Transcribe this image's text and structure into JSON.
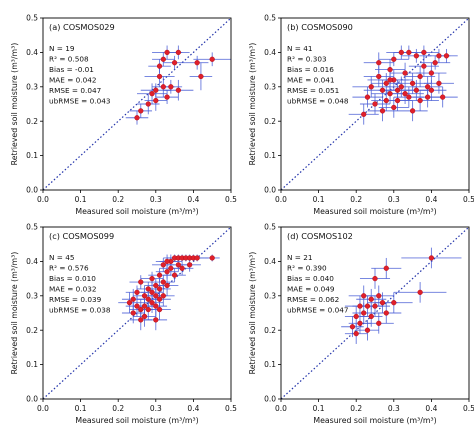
{
  "figure": {
    "ylabel": "Retrieved soil moisture (m³/m³)",
    "xlabel": "Measured soil moisture (m³/m³)"
  },
  "ticks": [
    "0.0",
    "0.1",
    "0.2",
    "0.3",
    "0.4",
    "0.5"
  ],
  "colors": {
    "point": "#e0202a",
    "point_edge": "#b01020",
    "errorbar": "#4b5fd6",
    "diagonal": "#2233aa",
    "axes": "#000000"
  },
  "chart_data": [
    {
      "type": "scatter",
      "title": "(a) COSMOS029",
      "xlabel": "Measured soil moisture (m³/m³)",
      "ylabel": "Retrieved soil moisture (m³/m³)",
      "xlim": [
        0,
        0.5
      ],
      "ylim": [
        0,
        0.5
      ],
      "diagonal": "1:1 dotted",
      "stats": [
        "N = 19",
        "R² = 0.508",
        "Bias = -0.01",
        "MAE = 0.042",
        "RMSE = 0.047",
        "ubRMSE = 0.043"
      ],
      "points": [
        {
          "x": 0.25,
          "y": 0.21,
          "ex": 0.03,
          "ey": 0.02
        },
        {
          "x": 0.26,
          "y": 0.23,
          "ex": 0.03,
          "ey": 0.02
        },
        {
          "x": 0.28,
          "y": 0.25,
          "ex": 0.03,
          "ey": 0.03
        },
        {
          "x": 0.29,
          "y": 0.28,
          "ex": 0.04,
          "ey": 0.03
        },
        {
          "x": 0.3,
          "y": 0.26,
          "ex": 0.03,
          "ey": 0.03
        },
        {
          "x": 0.3,
          "y": 0.29,
          "ex": 0.04,
          "ey": 0.02
        },
        {
          "x": 0.31,
          "y": 0.33,
          "ex": 0.04,
          "ey": 0.03
        },
        {
          "x": 0.31,
          "y": 0.36,
          "ex": 0.03,
          "ey": 0.02
        },
        {
          "x": 0.32,
          "y": 0.38,
          "ex": 0.03,
          "ey": 0.02
        },
        {
          "x": 0.32,
          "y": 0.3,
          "ex": 0.03,
          "ey": 0.03
        },
        {
          "x": 0.33,
          "y": 0.27,
          "ex": 0.03,
          "ey": 0.02
        },
        {
          "x": 0.33,
          "y": 0.4,
          "ex": 0.04,
          "ey": 0.02
        },
        {
          "x": 0.34,
          "y": 0.3,
          "ex": 0.03,
          "ey": 0.02
        },
        {
          "x": 0.36,
          "y": 0.4,
          "ex": 0.03,
          "ey": 0.02
        },
        {
          "x": 0.36,
          "y": 0.29,
          "ex": 0.04,
          "ey": 0.03
        },
        {
          "x": 0.35,
          "y": 0.37,
          "ex": 0.03,
          "ey": 0.02
        },
        {
          "x": 0.41,
          "y": 0.37,
          "ex": 0.03,
          "ey": 0.02
        },
        {
          "x": 0.42,
          "y": 0.33,
          "ex": 0.03,
          "ey": 0.04
        },
        {
          "x": 0.45,
          "y": 0.38,
          "ex": 0.05,
          "ey": 0.02
        }
      ]
    },
    {
      "type": "scatter",
      "title": "(b) COSMOS090",
      "xlabel": "Measured soil moisture (m³/m³)",
      "ylabel": "Retrieved soil moisture (m³/m³)",
      "xlim": [
        0,
        0.5
      ],
      "ylim": [
        0,
        0.5
      ],
      "diagonal": "1:1 dotted",
      "stats": [
        "N = 41",
        "R² = 0.303",
        "Bias = 0.016",
        "MAE = 0.041",
        "RMSE = 0.051",
        "ubRMSE = 0.048"
      ],
      "points": [
        {
          "x": 0.22,
          "y": 0.22,
          "ex": 0.04,
          "ey": 0.03
        },
        {
          "x": 0.23,
          "y": 0.27,
          "ex": 0.04,
          "ey": 0.03
        },
        {
          "x": 0.24,
          "y": 0.3,
          "ex": 0.05,
          "ey": 0.03
        },
        {
          "x": 0.25,
          "y": 0.25,
          "ex": 0.04,
          "ey": 0.03
        },
        {
          "x": 0.26,
          "y": 0.33,
          "ex": 0.04,
          "ey": 0.03
        },
        {
          "x": 0.27,
          "y": 0.29,
          "ex": 0.05,
          "ey": 0.03
        },
        {
          "x": 0.27,
          "y": 0.23,
          "ex": 0.04,
          "ey": 0.03
        },
        {
          "x": 0.28,
          "y": 0.31,
          "ex": 0.04,
          "ey": 0.03
        },
        {
          "x": 0.28,
          "y": 0.26,
          "ex": 0.04,
          "ey": 0.03
        },
        {
          "x": 0.29,
          "y": 0.35,
          "ex": 0.04,
          "ey": 0.03
        },
        {
          "x": 0.29,
          "y": 0.28,
          "ex": 0.05,
          "ey": 0.03
        },
        {
          "x": 0.3,
          "y": 0.32,
          "ex": 0.04,
          "ey": 0.03
        },
        {
          "x": 0.3,
          "y": 0.24,
          "ex": 0.04,
          "ey": 0.03
        },
        {
          "x": 0.3,
          "y": 0.38,
          "ex": 0.04,
          "ey": 0.02
        },
        {
          "x": 0.31,
          "y": 0.29,
          "ex": 0.05,
          "ey": 0.03
        },
        {
          "x": 0.31,
          "y": 0.26,
          "ex": 0.04,
          "ey": 0.03
        },
        {
          "x": 0.32,
          "y": 0.4,
          "ex": 0.04,
          "ey": 0.02
        },
        {
          "x": 0.32,
          "y": 0.3,
          "ex": 0.04,
          "ey": 0.03
        },
        {
          "x": 0.33,
          "y": 0.28,
          "ex": 0.05,
          "ey": 0.03
        },
        {
          "x": 0.33,
          "y": 0.34,
          "ex": 0.04,
          "ey": 0.03
        },
        {
          "x": 0.34,
          "y": 0.4,
          "ex": 0.04,
          "ey": 0.02
        },
        {
          "x": 0.34,
          "y": 0.27,
          "ex": 0.04,
          "ey": 0.03
        },
        {
          "x": 0.35,
          "y": 0.31,
          "ex": 0.05,
          "ey": 0.03
        },
        {
          "x": 0.35,
          "y": 0.23,
          "ex": 0.04,
          "ey": 0.03
        },
        {
          "x": 0.36,
          "y": 0.39,
          "ex": 0.04,
          "ey": 0.02
        },
        {
          "x": 0.36,
          "y": 0.29,
          "ex": 0.04,
          "ey": 0.03
        },
        {
          "x": 0.37,
          "y": 0.33,
          "ex": 0.04,
          "ey": 0.03
        },
        {
          "x": 0.37,
          "y": 0.26,
          "ex": 0.05,
          "ey": 0.03
        },
        {
          "x": 0.38,
          "y": 0.4,
          "ex": 0.04,
          "ey": 0.02
        },
        {
          "x": 0.38,
          "y": 0.36,
          "ex": 0.04,
          "ey": 0.03
        },
        {
          "x": 0.39,
          "y": 0.3,
          "ex": 0.04,
          "ey": 0.03
        },
        {
          "x": 0.39,
          "y": 0.27,
          "ex": 0.04,
          "ey": 0.03
        },
        {
          "x": 0.4,
          "y": 0.34,
          "ex": 0.04,
          "ey": 0.03
        },
        {
          "x": 0.4,
          "y": 0.29,
          "ex": 0.04,
          "ey": 0.03
        },
        {
          "x": 0.41,
          "y": 0.37,
          "ex": 0.04,
          "ey": 0.02
        },
        {
          "x": 0.42,
          "y": 0.39,
          "ex": 0.03,
          "ey": 0.02
        },
        {
          "x": 0.42,
          "y": 0.31,
          "ex": 0.04,
          "ey": 0.03
        },
        {
          "x": 0.43,
          "y": 0.27,
          "ex": 0.04,
          "ey": 0.03
        },
        {
          "x": 0.44,
          "y": 0.39,
          "ex": 0.03,
          "ey": 0.02
        },
        {
          "x": 0.29,
          "y": 0.32,
          "ex": 0.06,
          "ey": 0.03
        },
        {
          "x": 0.26,
          "y": 0.37,
          "ex": 0.04,
          "ey": 0.03
        }
      ]
    },
    {
      "type": "scatter",
      "title": "(c) COSMOS099",
      "xlabel": "Measured soil moisture (m³/m³)",
      "ylabel": "Retrieved soil moisture (m³/m³)",
      "xlim": [
        0,
        0.5
      ],
      "ylim": [
        0,
        0.5
      ],
      "diagonal": "1:1 dotted",
      "stats": [
        "N = 45",
        "R² = 0.576",
        "Bias = 0.010",
        "MAE = 0.032",
        "RMSE = 0.039",
        "ubRMSE = 0.038"
      ],
      "points": [
        {
          "x": 0.23,
          "y": 0.28,
          "ex": 0.03,
          "ey": 0.03
        },
        {
          "x": 0.24,
          "y": 0.25,
          "ex": 0.03,
          "ey": 0.03
        },
        {
          "x": 0.25,
          "y": 0.27,
          "ex": 0.03,
          "ey": 0.03
        },
        {
          "x": 0.25,
          "y": 0.31,
          "ex": 0.03,
          "ey": 0.02
        },
        {
          "x": 0.26,
          "y": 0.26,
          "ex": 0.03,
          "ey": 0.03
        },
        {
          "x": 0.26,
          "y": 0.23,
          "ex": 0.03,
          "ey": 0.03
        },
        {
          "x": 0.27,
          "y": 0.3,
          "ex": 0.03,
          "ey": 0.03
        },
        {
          "x": 0.27,
          "y": 0.27,
          "ex": 0.03,
          "ey": 0.03
        },
        {
          "x": 0.27,
          "y": 0.24,
          "ex": 0.03,
          "ey": 0.03
        },
        {
          "x": 0.28,
          "y": 0.32,
          "ex": 0.03,
          "ey": 0.02
        },
        {
          "x": 0.28,
          "y": 0.29,
          "ex": 0.03,
          "ey": 0.03
        },
        {
          "x": 0.28,
          "y": 0.26,
          "ex": 0.03,
          "ey": 0.03
        },
        {
          "x": 0.29,
          "y": 0.31,
          "ex": 0.03,
          "ey": 0.03
        },
        {
          "x": 0.29,
          "y": 0.28,
          "ex": 0.03,
          "ey": 0.03
        },
        {
          "x": 0.29,
          "y": 0.35,
          "ex": 0.03,
          "ey": 0.02
        },
        {
          "x": 0.3,
          "y": 0.33,
          "ex": 0.03,
          "ey": 0.02
        },
        {
          "x": 0.3,
          "y": 0.3,
          "ex": 0.03,
          "ey": 0.03
        },
        {
          "x": 0.3,
          "y": 0.27,
          "ex": 0.03,
          "ey": 0.03
        },
        {
          "x": 0.3,
          "y": 0.23,
          "ex": 0.03,
          "ey": 0.03
        },
        {
          "x": 0.31,
          "y": 0.36,
          "ex": 0.03,
          "ey": 0.02
        },
        {
          "x": 0.31,
          "y": 0.32,
          "ex": 0.03,
          "ey": 0.03
        },
        {
          "x": 0.31,
          "y": 0.29,
          "ex": 0.03,
          "ey": 0.03
        },
        {
          "x": 0.32,
          "y": 0.34,
          "ex": 0.03,
          "ey": 0.02
        },
        {
          "x": 0.32,
          "y": 0.3,
          "ex": 0.03,
          "ey": 0.03
        },
        {
          "x": 0.32,
          "y": 0.39,
          "ex": 0.03,
          "ey": 0.02
        },
        {
          "x": 0.33,
          "y": 0.37,
          "ex": 0.03,
          "ey": 0.02
        },
        {
          "x": 0.33,
          "y": 0.33,
          "ex": 0.03,
          "ey": 0.03
        },
        {
          "x": 0.34,
          "y": 0.4,
          "ex": 0.03,
          "ey": 0.02
        },
        {
          "x": 0.34,
          "y": 0.38,
          "ex": 0.03,
          "ey": 0.02
        },
        {
          "x": 0.35,
          "y": 0.41,
          "ex": 0.03,
          "ey": 0.01
        },
        {
          "x": 0.35,
          "y": 0.36,
          "ex": 0.03,
          "ey": 0.02
        },
        {
          "x": 0.36,
          "y": 0.39,
          "ex": 0.03,
          "ey": 0.02
        },
        {
          "x": 0.36,
          "y": 0.41,
          "ex": 0.03,
          "ey": 0.01
        },
        {
          "x": 0.37,
          "y": 0.38,
          "ex": 0.03,
          "ey": 0.02
        },
        {
          "x": 0.37,
          "y": 0.41,
          "ex": 0.03,
          "ey": 0.01
        },
        {
          "x": 0.38,
          "y": 0.41,
          "ex": 0.03,
          "ey": 0.01
        },
        {
          "x": 0.39,
          "y": 0.39,
          "ex": 0.03,
          "ey": 0.02
        },
        {
          "x": 0.39,
          "y": 0.41,
          "ex": 0.03,
          "ey": 0.01
        },
        {
          "x": 0.4,
          "y": 0.41,
          "ex": 0.03,
          "ey": 0.01
        },
        {
          "x": 0.41,
          "y": 0.41,
          "ex": 0.03,
          "ey": 0.01
        },
        {
          "x": 0.45,
          "y": 0.41,
          "ex": 0.02,
          "ey": 0.01
        },
        {
          "x": 0.26,
          "y": 0.34,
          "ex": 0.03,
          "ey": 0.02
        },
        {
          "x": 0.24,
          "y": 0.29,
          "ex": 0.03,
          "ey": 0.03
        },
        {
          "x": 0.31,
          "y": 0.26,
          "ex": 0.03,
          "ey": 0.03
        },
        {
          "x": 0.33,
          "y": 0.4,
          "ex": 0.03,
          "ey": 0.02
        }
      ]
    },
    {
      "type": "scatter",
      "title": "(d) COSMOS102",
      "xlabel": "Measured soil moisture (m³/m³)",
      "ylabel": "Retrieved soil moisture (m³/m³)",
      "xlim": [
        0,
        0.5
      ],
      "ylim": [
        0,
        0.5
      ],
      "diagonal": "1:1 dotted",
      "stats": [
        "N = 21",
        "R² = 0.390",
        "Bias = 0.040",
        "MAE = 0.049",
        "RMSE = 0.062",
        "ubRMSE = 0.047"
      ],
      "points": [
        {
          "x": 0.19,
          "y": 0.21,
          "ex": 0.03,
          "ey": 0.03
        },
        {
          "x": 0.2,
          "y": 0.24,
          "ex": 0.03,
          "ey": 0.03
        },
        {
          "x": 0.2,
          "y": 0.19,
          "ex": 0.03,
          "ey": 0.03
        },
        {
          "x": 0.21,
          "y": 0.27,
          "ex": 0.04,
          "ey": 0.03
        },
        {
          "x": 0.21,
          "y": 0.22,
          "ex": 0.03,
          "ey": 0.03
        },
        {
          "x": 0.22,
          "y": 0.3,
          "ex": 0.04,
          "ey": 0.03
        },
        {
          "x": 0.22,
          "y": 0.25,
          "ex": 0.03,
          "ey": 0.03
        },
        {
          "x": 0.23,
          "y": 0.27,
          "ex": 0.04,
          "ey": 0.03
        },
        {
          "x": 0.23,
          "y": 0.2,
          "ex": 0.03,
          "ey": 0.03
        },
        {
          "x": 0.24,
          "y": 0.29,
          "ex": 0.04,
          "ey": 0.03
        },
        {
          "x": 0.24,
          "y": 0.24,
          "ex": 0.03,
          "ey": 0.03
        },
        {
          "x": 0.25,
          "y": 0.35,
          "ex": 0.04,
          "ey": 0.03
        },
        {
          "x": 0.25,
          "y": 0.27,
          "ex": 0.04,
          "ey": 0.03
        },
        {
          "x": 0.26,
          "y": 0.3,
          "ex": 0.04,
          "ey": 0.03
        },
        {
          "x": 0.26,
          "y": 0.22,
          "ex": 0.04,
          "ey": 0.03
        },
        {
          "x": 0.27,
          "y": 0.28,
          "ex": 0.04,
          "ey": 0.03
        },
        {
          "x": 0.28,
          "y": 0.38,
          "ex": 0.04,
          "ey": 0.03
        },
        {
          "x": 0.28,
          "y": 0.25,
          "ex": 0.04,
          "ey": 0.03
        },
        {
          "x": 0.3,
          "y": 0.28,
          "ex": 0.05,
          "ey": 0.03
        },
        {
          "x": 0.37,
          "y": 0.31,
          "ex": 0.07,
          "ey": 0.03
        },
        {
          "x": 0.4,
          "y": 0.41,
          "ex": 0.08,
          "ey": 0.03
        }
      ]
    }
  ]
}
